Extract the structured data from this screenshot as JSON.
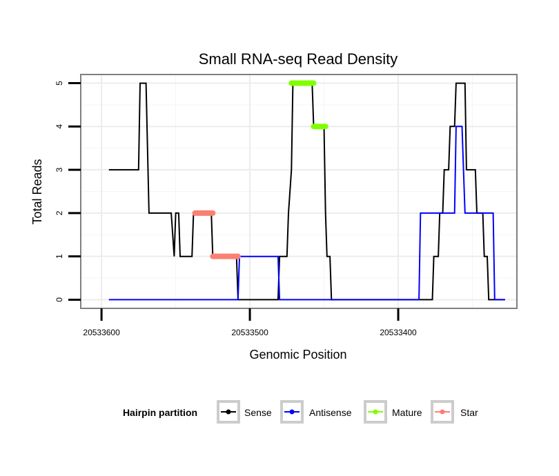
{
  "chart_data": {
    "type": "line",
    "title": "Small RNA-seq Read Density",
    "xlabel": "Genomic Position",
    "ylabel": "Total Reads",
    "x_reversed": true,
    "xlim": [
      20533614,
      20533320
    ],
    "ylim": [
      -0.2,
      5.2
    ],
    "grid": true,
    "x_ticks": [
      20533600,
      20533500,
      20533400
    ],
    "x_tick_labels": [
      "20533600",
      "20533500",
      "20533400"
    ],
    "y_ticks": [
      0,
      1,
      2,
      3,
      4,
      5
    ],
    "y_tick_labels": [
      "0",
      "1",
      "2",
      "3",
      "4",
      "5"
    ],
    "legend": {
      "title": "Hairpin partition",
      "placement": "bottom",
      "entries": [
        {
          "name": "Sense",
          "color": "#000000"
        },
        {
          "name": "Antisense",
          "color": "#0000ff"
        },
        {
          "name": "Mature",
          "color": "#7fff00"
        },
        {
          "name": "Star",
          "color": "#fa8072"
        }
      ]
    },
    "series": [
      {
        "name": "Sense",
        "color": "#000000",
        "style": "step-line",
        "points": [
          [
            20533595,
            3
          ],
          [
            20533575,
            3
          ],
          [
            20533574,
            5
          ],
          [
            20533570,
            5
          ],
          [
            20533568,
            2
          ],
          [
            20533553,
            2
          ],
          [
            20533551,
            1
          ],
          [
            20533550,
            2
          ],
          [
            20533548,
            2
          ],
          [
            20533547,
            1
          ],
          [
            20533539,
            1
          ],
          [
            20533538,
            2
          ],
          [
            20533526,
            2
          ],
          [
            20533525,
            1
          ],
          [
            20533509,
            1
          ],
          [
            20533508,
            0
          ],
          [
            20533481,
            0
          ],
          [
            20533480,
            1
          ],
          [
            20533475,
            1
          ],
          [
            20533474,
            2
          ],
          [
            20533472,
            3
          ],
          [
            20533471,
            5
          ],
          [
            20533458,
            5
          ],
          [
            20533457,
            4
          ],
          [
            20533450,
            4
          ],
          [
            20533449,
            2
          ],
          [
            20533448,
            1
          ],
          [
            20533446,
            1
          ],
          [
            20533445,
            0
          ],
          [
            20533377,
            0
          ],
          [
            20533376,
            1
          ],
          [
            20533373,
            1
          ],
          [
            20533372,
            2
          ],
          [
            20533370,
            2
          ],
          [
            20533369,
            3
          ],
          [
            20533366,
            3
          ],
          [
            20533365,
            4
          ],
          [
            20533362,
            4
          ],
          [
            20533361,
            5
          ],
          [
            20533355,
            5
          ],
          [
            20533354,
            3
          ],
          [
            20533348,
            3
          ],
          [
            20533347,
            2
          ],
          [
            20533343,
            2
          ],
          [
            20533342,
            1
          ],
          [
            20533340,
            1
          ],
          [
            20533339,
            0
          ],
          [
            20533328,
            0
          ]
        ]
      },
      {
        "name": "Antisense",
        "color": "#0000ff",
        "style": "step-line",
        "points": [
          [
            20533595,
            0
          ],
          [
            20533508,
            0
          ],
          [
            20533507,
            1
          ],
          [
            20533481,
            1
          ],
          [
            20533480,
            0
          ],
          [
            20533386,
            0
          ],
          [
            20533385,
            2
          ],
          [
            20533362,
            2
          ],
          [
            20533361,
            4
          ],
          [
            20533357,
            4
          ],
          [
            20533356,
            3
          ],
          [
            20533355,
            2
          ],
          [
            20533336,
            2
          ],
          [
            20533335,
            0
          ],
          [
            20533328,
            0
          ]
        ]
      },
      {
        "name": "Mature",
        "color": "#7fff00",
        "style": "segments",
        "segments": [
          {
            "x1": 20533472,
            "x2": 20533457,
            "y": 5
          },
          {
            "x1": 20533457,
            "x2": 20533449,
            "y": 4
          }
        ]
      },
      {
        "name": "Star",
        "color": "#fa8072",
        "style": "segments",
        "segments": [
          {
            "x1": 20533537,
            "x2": 20533525,
            "y": 2
          },
          {
            "x1": 20533525,
            "x2": 20533508,
            "y": 1
          }
        ]
      }
    ]
  }
}
